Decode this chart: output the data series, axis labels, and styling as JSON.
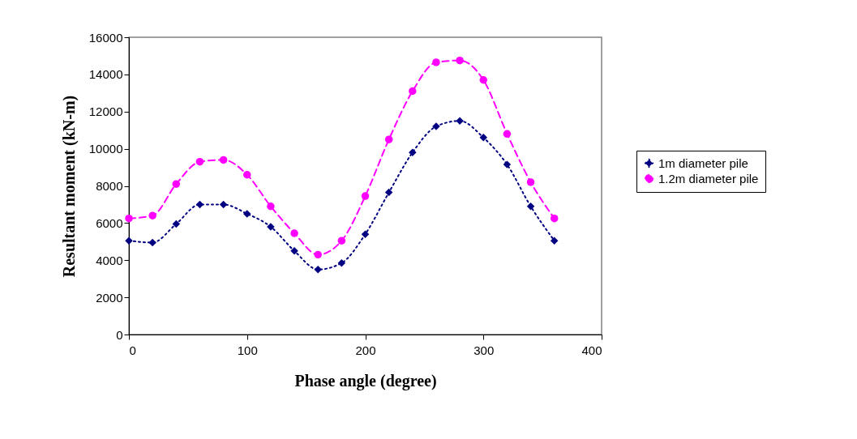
{
  "chart_data": {
    "type": "line",
    "xlabel": "Phase angle (degree)",
    "ylabel": "Resultant moment (kN-m)",
    "x": [
      0,
      20,
      40,
      60,
      80,
      100,
      120,
      140,
      160,
      180,
      200,
      220,
      240,
      260,
      280,
      300,
      320,
      340,
      360
    ],
    "series": [
      {
        "name": "1m diameter pile",
        "color": "#000080",
        "marker": "diamond",
        "line_style": "dotted",
        "values": [
          5050,
          4950,
          5950,
          7000,
          7000,
          6500,
          5800,
          4500,
          3500,
          3850,
          5400,
          7650,
          9800,
          11200,
          11500,
          10600,
          9150,
          6900,
          5050
        ]
      },
      {
        "name": "1.2m diameter pile",
        "color": "#ff00ff",
        "marker": "circle",
        "line_style": "dashed",
        "values": [
          6250,
          6400,
          8100,
          9300,
          9400,
          8600,
          6900,
          5450,
          4300,
          5050,
          7450,
          10500,
          13100,
          14650,
          14750,
          13700,
          10800,
          8200,
          6250
        ]
      }
    ],
    "xlim": [
      0,
      400
    ],
    "xticks": [
      0,
      100,
      200,
      300,
      400
    ],
    "ylim": [
      0,
      16000
    ],
    "yticks": [
      0,
      2000,
      4000,
      6000,
      8000,
      10000,
      12000,
      14000,
      16000
    ],
    "grid": false,
    "legend": "right"
  }
}
